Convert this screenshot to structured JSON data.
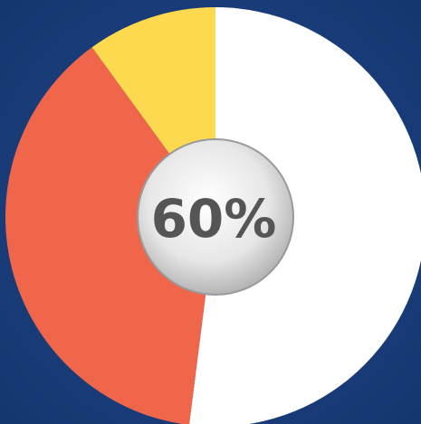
{
  "chart_data": {
    "type": "pie",
    "center_label": "60%",
    "values": [
      52,
      38,
      10
    ],
    "colors": [
      "#ffffff",
      "#ef664b",
      "#fcd94f"
    ]
  }
}
